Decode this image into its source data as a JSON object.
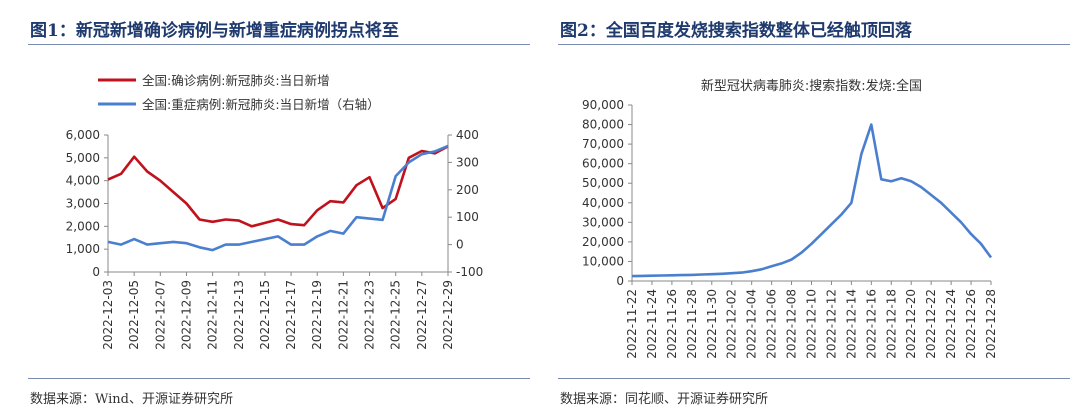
{
  "left_panel": {
    "title": "图1：新冠新增确诊病例与新增重症病例拐点将至",
    "source": "数据来源：Wind、开源证券研究所"
  },
  "right_panel": {
    "title": "图2：全国百度发烧搜索指数整体已经触顶回落",
    "source": "数据来源：同花顺、开源证券研究所"
  },
  "chart_data": [
    {
      "type": "line",
      "x": [
        "2022-12-03",
        "2022-12-04",
        "2022-12-05",
        "2022-12-06",
        "2022-12-07",
        "2022-12-08",
        "2022-12-09",
        "2022-12-10",
        "2022-12-11",
        "2022-12-12",
        "2022-12-13",
        "2022-12-14",
        "2022-12-15",
        "2022-12-16",
        "2022-12-17",
        "2022-12-18",
        "2022-12-19",
        "2022-12-20",
        "2022-12-21",
        "2022-12-22",
        "2022-12-23",
        "2022-12-24",
        "2022-12-25",
        "2022-12-26",
        "2022-12-27",
        "2022-12-28",
        "2022-12-29"
      ],
      "x_tick_labels": [
        "2022-12-03",
        "2022-12-05",
        "2022-12-07",
        "2022-12-09",
        "2022-12-11",
        "2022-12-13",
        "2022-12-15",
        "2022-12-17",
        "2022-12-19",
        "2022-12-21",
        "2022-12-23",
        "2022-12-25",
        "2022-12-27",
        "2022-12-29"
      ],
      "series": [
        {
          "name": "全国:确诊病例:新冠肺炎:当日新增",
          "axis": "left",
          "color": "#c0121c",
          "values": [
            4050,
            4300,
            5050,
            4400,
            4000,
            3500,
            3000,
            2300,
            2200,
            2300,
            2250,
            2000,
            2150,
            2300,
            2100,
            2050,
            2700,
            3100,
            3050,
            3800,
            4150,
            2800,
            3200,
            5000,
            5300,
            5200,
            5500
          ]
        },
        {
          "name": "全国:重症病例:新冠肺炎:当日新增（右轴）",
          "axis": "right",
          "color": "#4a7fd0",
          "values": [
            10,
            0,
            20,
            0,
            5,
            10,
            5,
            -10,
            -20,
            0,
            0,
            10,
            20,
            30,
            0,
            0,
            30,
            50,
            40,
            100,
            95,
            90,
            250,
            300,
            330,
            340,
            360
          ]
        }
      ],
      "y_left": {
        "ticks": [
          "0",
          "1,000",
          "2,000",
          "3,000",
          "4,000",
          "5,000",
          "6,000"
        ],
        "min": 0,
        "max": 6000
      },
      "y_right": {
        "ticks": [
          "-100",
          "0",
          "100",
          "200",
          "300",
          "400"
        ],
        "min": -100,
        "max": 400
      },
      "legend_position": "top-left",
      "grid": false
    },
    {
      "type": "line",
      "title": "新型冠状病毒肺炎:搜索指数:发烧:全国",
      "x": [
        "2022-11-22",
        "2022-11-23",
        "2022-11-24",
        "2022-11-25",
        "2022-11-26",
        "2022-11-27",
        "2022-11-28",
        "2022-11-29",
        "2022-11-30",
        "2022-12-01",
        "2022-12-02",
        "2022-12-03",
        "2022-12-04",
        "2022-12-05",
        "2022-12-06",
        "2022-12-07",
        "2022-12-08",
        "2022-12-09",
        "2022-12-10",
        "2022-12-11",
        "2022-12-12",
        "2022-12-13",
        "2022-12-14",
        "2022-12-15",
        "2022-12-16",
        "2022-12-17",
        "2022-12-18",
        "2022-12-19",
        "2022-12-20",
        "2022-12-21",
        "2022-12-22",
        "2022-12-23",
        "2022-12-24",
        "2022-12-25",
        "2022-12-26",
        "2022-12-27",
        "2022-12-28"
      ],
      "x_tick_labels": [
        "2022-11-22",
        "2022-11-24",
        "2022-11-26",
        "2022-11-28",
        "2022-11-30",
        "2022-12-02",
        "2022-12-04",
        "2022-12-06",
        "2022-12-08",
        "2022-12-10",
        "2022-12-12",
        "2022-12-14",
        "2022-12-16",
        "2022-12-18",
        "2022-12-20",
        "2022-12-22",
        "2022-12-24",
        "2022-12-26",
        "2022-12-28"
      ],
      "series": [
        {
          "color": "#4a7fd0",
          "values": [
            2500,
            2600,
            2700,
            2800,
            2900,
            3000,
            3100,
            3300,
            3500,
            3700,
            4000,
            4300,
            5000,
            6000,
            7500,
            9000,
            11000,
            14500,
            19000,
            24000,
            29000,
            34000,
            40000,
            65000,
            80000,
            52000,
            51000,
            52500,
            51000,
            48000,
            44000,
            40000,
            35000,
            30000,
            24000,
            19000,
            12000
          ]
        }
      ],
      "y": {
        "ticks": [
          "0",
          "10,000",
          "20,000",
          "30,000",
          "40,000",
          "50,000",
          "60,000",
          "70,000",
          "80,000",
          "90,000"
        ],
        "min": 0,
        "max": 90000
      },
      "grid": false
    }
  ]
}
